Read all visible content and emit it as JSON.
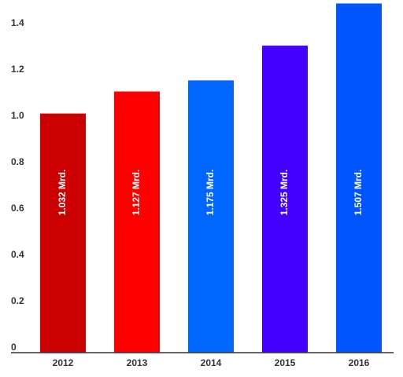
{
  "chart_data": {
    "type": "bar",
    "categories": [
      "2012",
      "2013",
      "2014",
      "2015",
      "2016"
    ],
    "values": [
      1.032,
      1.127,
      1.175,
      1.325,
      1.507
    ],
    "data_labels": [
      "1.032 Mrd.",
      "1.127 Mrd.",
      "1.175 Mrd.",
      "1.325 Mrd.",
      "1.507 Mrd."
    ],
    "colors": [
      "#cc0000",
      "#ff0000",
      "#0066ff",
      "#4400ff",
      "#0055ff"
    ],
    "yticks": [
      "0",
      "0.2",
      "0.4",
      "0.6",
      "0.8",
      "1.0",
      "1.2",
      "1.4"
    ],
    "ylim": [
      0,
      1.5
    ],
    "title": "",
    "xlabel": "",
    "ylabel": "",
    "grid": false,
    "legend": "none",
    "data_label_orientation": "vertical"
  }
}
